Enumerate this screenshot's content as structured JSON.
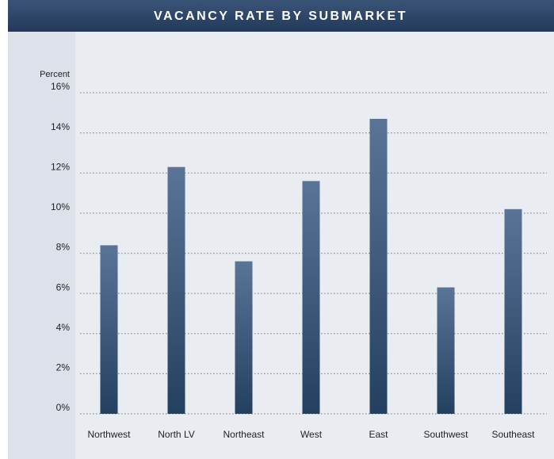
{
  "chart_data": {
    "type": "bar",
    "title": "VACANCY RATE BY SUBMARKET",
    "y_label": "Percent",
    "categories": [
      "Northwest",
      "North LV",
      "Northeast",
      "West",
      "East",
      "Southwest",
      "Southeast"
    ],
    "values": [
      8.4,
      12.3,
      7.6,
      11.6,
      14.7,
      6.3,
      10.2
    ],
    "color": "#3f5a7e",
    "ylim": [
      0,
      16
    ],
    "yticks": [
      {
        "value": 0,
        "label": "0%"
      },
      {
        "value": 2,
        "label": "2%"
      },
      {
        "value": 4,
        "label": "4%"
      },
      {
        "value": 6,
        "label": "6%"
      },
      {
        "value": 8,
        "label": "8%"
      },
      {
        "value": 10,
        "label": "10%"
      },
      {
        "value": 12,
        "label": "12%"
      },
      {
        "value": 14,
        "label": "14%"
      },
      {
        "value": 16,
        "label": "16%"
      }
    ],
    "grid": true
  }
}
